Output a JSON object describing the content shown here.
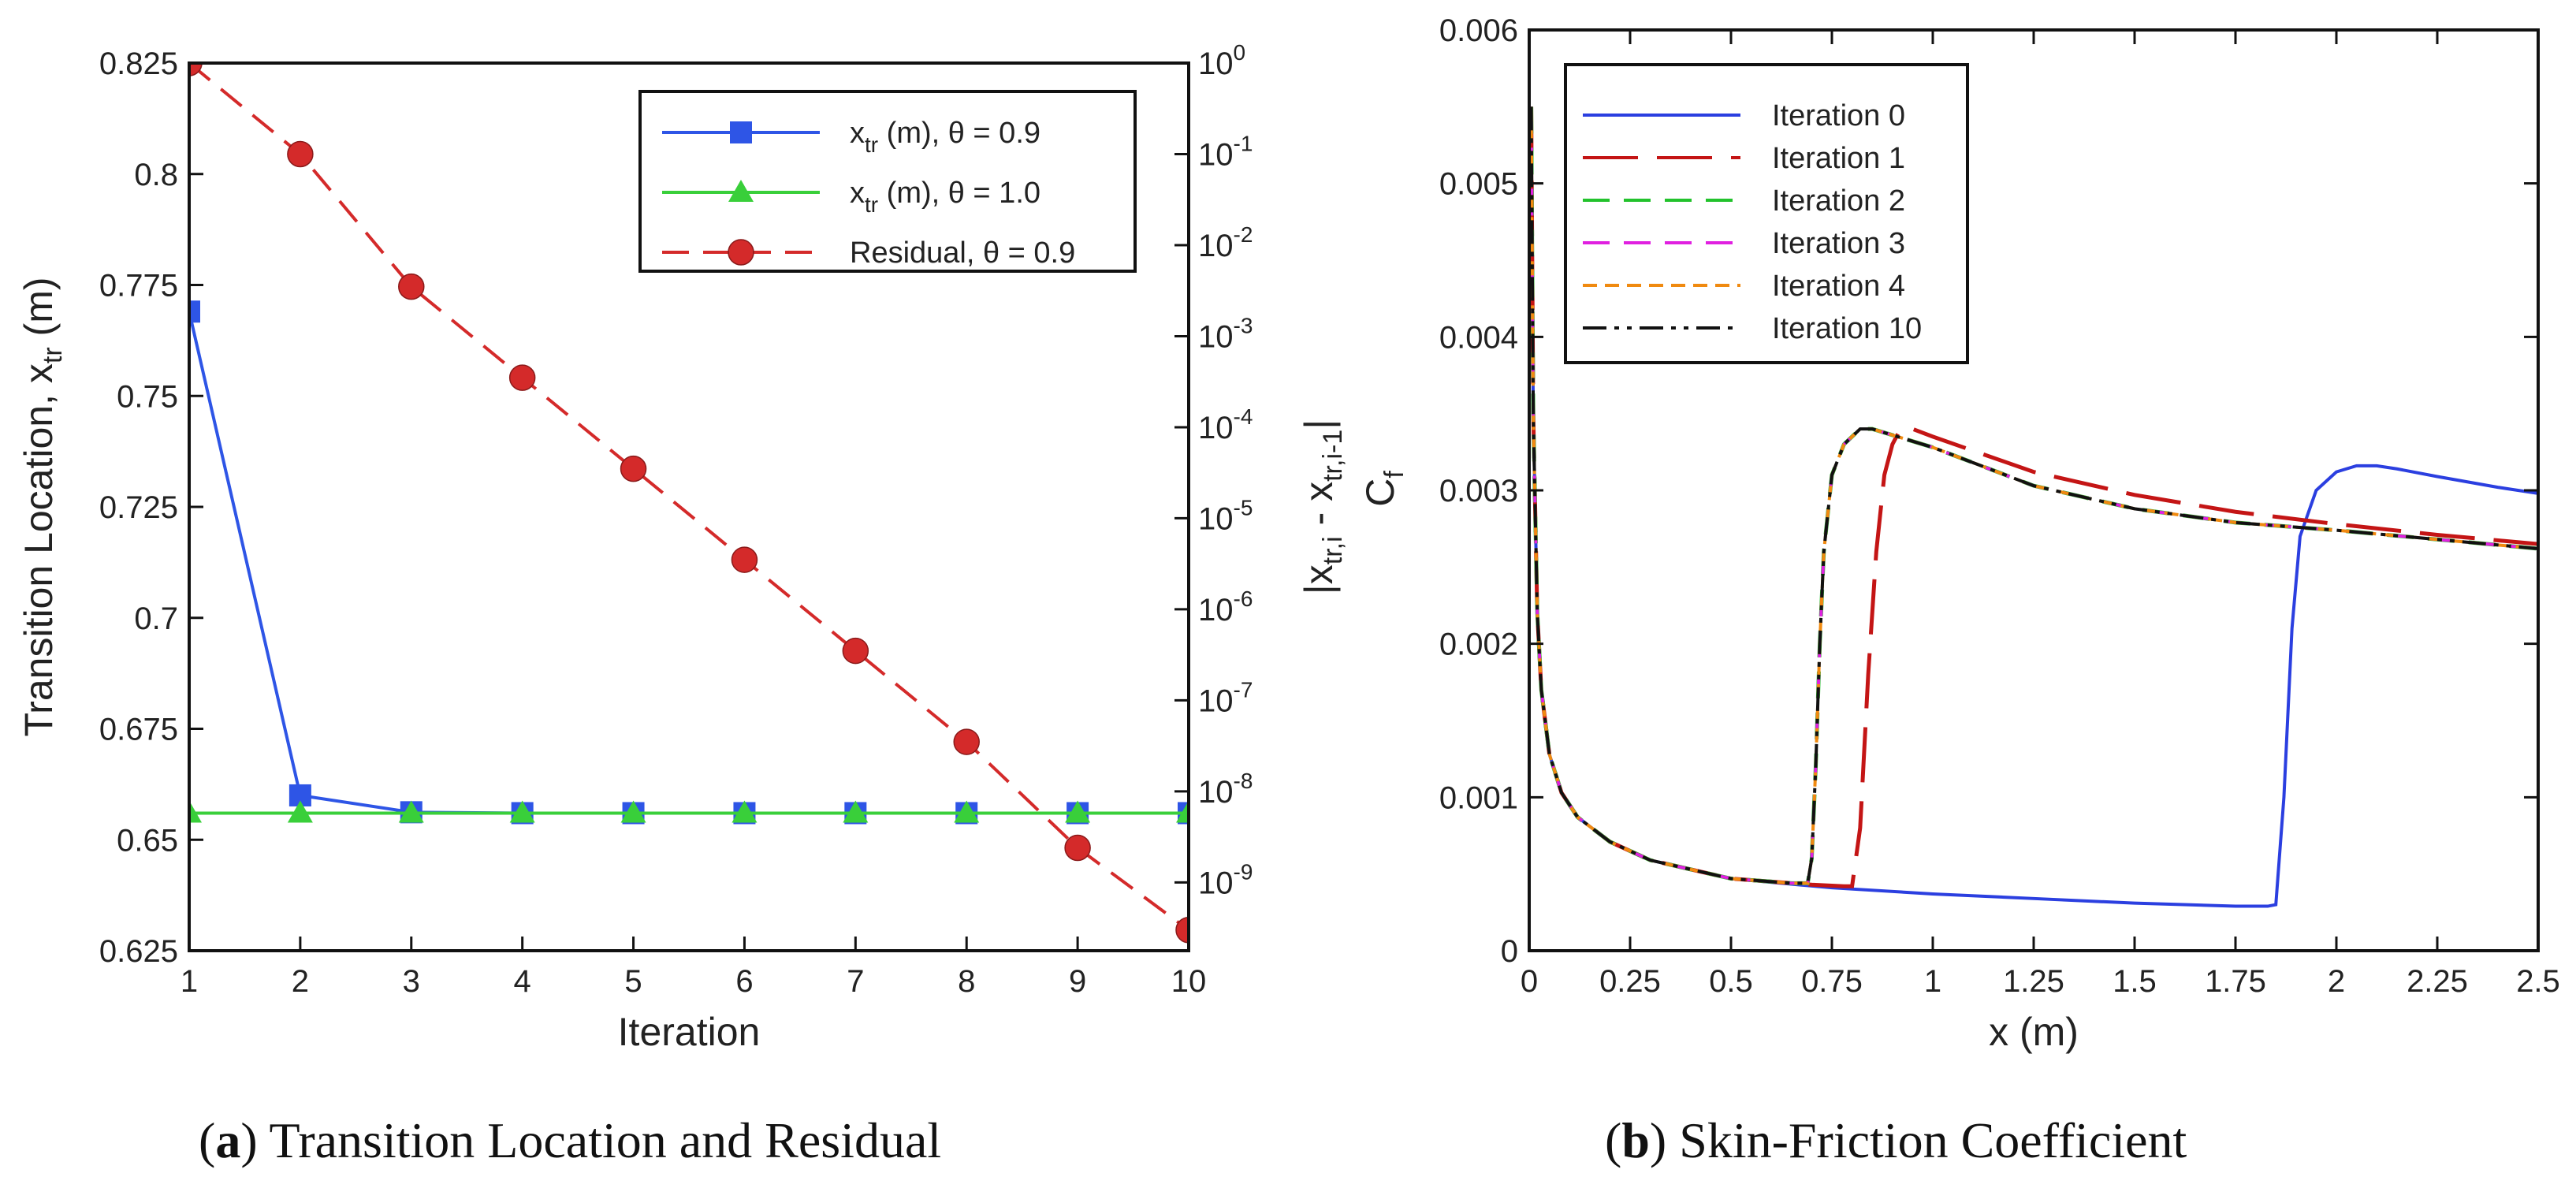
{
  "captions": {
    "a_letter": "a",
    "a_text": "Transition Location and Residual",
    "b_letter": "b",
    "b_text": "Skin-Friction Coefficient"
  },
  "chart_data": [
    {
      "type": "line",
      "xlabel": "Iteration",
      "ylabel": "Transition Location, x",
      "ylabel_sub": "tr",
      "ylabel_unit": " (m)",
      "y2label_parts": [
        "|x",
        "tr,i",
        " - x",
        "tr,i-1",
        "|"
      ],
      "x": [
        1,
        2,
        3,
        4,
        5,
        6,
        7,
        8,
        9,
        10
      ],
      "xlim": [
        1,
        10
      ],
      "xticks": [
        "1",
        "2",
        "3",
        "4",
        "5",
        "6",
        "7",
        "8",
        "9",
        "10"
      ],
      "ylim": [
        0.625,
        0.825
      ],
      "yticks": [
        "0.625",
        "0.65",
        "0.675",
        "0.7",
        "0.725",
        "0.75",
        "0.775",
        "0.8",
        "0.825"
      ],
      "y2scale": "log",
      "y2lim_exp": [
        -9.75,
        0
      ],
      "y2tick_exponents": [
        "0",
        "-1",
        "-2",
        "-3",
        "-4",
        "-5",
        "-6",
        "-7",
        "-8",
        "-9"
      ],
      "y2tick_base": "10",
      "legend_position": "top-right",
      "series": [
        {
          "name": "x",
          "name_sub": "tr",
          "name_rest": " (m), θ = 0.9",
          "axis": "left",
          "color": "#2e55e6",
          "marker": "square",
          "dash": "solid",
          "values": [
            0.769,
            0.66,
            0.6562,
            0.656,
            0.656,
            0.656,
            0.656,
            0.656,
            0.656,
            0.656
          ]
        },
        {
          "name": "x",
          "name_sub": "tr",
          "name_rest": " (m), θ = 1.0",
          "axis": "left",
          "color": "#39cf3a",
          "marker": "triangle",
          "dash": "solid",
          "values": [
            0.656,
            0.656,
            0.656,
            0.656,
            0.656,
            0.656,
            0.656,
            0.656,
            0.656,
            0.656
          ]
        },
        {
          "name": "Residual, θ = 0.9",
          "axis": "right",
          "color": "#d42a2a",
          "marker": "circle",
          "dash": "dashed",
          "values": [
            1.0,
            0.1,
            0.0035,
            0.00035,
            3.5e-05,
            3.5e-06,
            3.5e-07,
            3.5e-08,
            2.4e-09,
            3e-10
          ]
        }
      ]
    },
    {
      "type": "line",
      "xlabel": "x (m)",
      "ylabel": "C",
      "ylabel_sub": "f",
      "xlim": [
        0,
        2.5
      ],
      "xticks": [
        "0",
        "0.25",
        "0.5",
        "0.75",
        "1",
        "1.25",
        "1.5",
        "1.75",
        "2",
        "2.25",
        "2.5"
      ],
      "ylim": [
        0,
        0.006
      ],
      "yticks": [
        "0",
        "0.001",
        "0.002",
        "0.003",
        "0.004",
        "0.005",
        "0.006"
      ],
      "legend_position": "top-left",
      "series": [
        {
          "name": "Iteration 0",
          "color": "#2b3fe0",
          "dash": "solid",
          "x": [
            0.005,
            0.01,
            0.02,
            0.03,
            0.05,
            0.08,
            0.12,
            0.2,
            0.3,
            0.5,
            0.75,
            1.0,
            1.25,
            1.5,
            1.75,
            1.8,
            1.83,
            1.85,
            1.87,
            1.89,
            1.91,
            1.95,
            2.0,
            2.05,
            2.1,
            2.15,
            2.25,
            2.4,
            2.5
          ],
          "y": [
            0.0055,
            0.0035,
            0.0022,
            0.0017,
            0.00128,
            0.00103,
            0.00087,
            0.00071,
            0.00059,
            0.00047,
            0.00041,
            0.00037,
            0.00034,
            0.00031,
            0.00029,
            0.00029,
            0.00029,
            0.0003,
            0.001,
            0.0021,
            0.0027,
            0.003,
            0.00312,
            0.00316,
            0.00316,
            0.00314,
            0.00309,
            0.00302,
            0.00298
          ]
        },
        {
          "name": "Iteration 1",
          "color": "#c41515",
          "dash": "longdash",
          "x": [
            0.005,
            0.01,
            0.02,
            0.03,
            0.05,
            0.08,
            0.12,
            0.2,
            0.3,
            0.5,
            0.7,
            0.78,
            0.8,
            0.82,
            0.84,
            0.86,
            0.88,
            0.9,
            0.92,
            0.95,
            1.0,
            1.25,
            1.5,
            1.75,
            2.0,
            2.25,
            2.5
          ],
          "y": [
            0.0055,
            0.0035,
            0.0022,
            0.0017,
            0.00128,
            0.00103,
            0.00087,
            0.00071,
            0.00059,
            0.00047,
            0.00043,
            0.00042,
            0.00042,
            0.0008,
            0.0018,
            0.0026,
            0.0031,
            0.0033,
            0.0034,
            0.0034,
            0.00335,
            0.00312,
            0.00297,
            0.00286,
            0.00278,
            0.00271,
            0.00265
          ]
        },
        {
          "name": "Iteration 2",
          "color": "#22c22c",
          "dash": "dashed",
          "x": [
            0.005,
            0.01,
            0.02,
            0.03,
            0.05,
            0.08,
            0.12,
            0.2,
            0.3,
            0.5,
            0.65,
            0.69,
            0.7,
            0.71,
            0.72,
            0.73,
            0.75,
            0.78,
            0.82,
            0.85,
            1.0,
            1.25,
            1.5,
            1.75,
            2.0,
            2.25,
            2.5
          ],
          "y": [
            0.0055,
            0.0035,
            0.0022,
            0.0017,
            0.00128,
            0.00103,
            0.00087,
            0.00071,
            0.00059,
            0.00047,
            0.00044,
            0.00044,
            0.0006,
            0.0012,
            0.002,
            0.0026,
            0.0031,
            0.0033,
            0.0034,
            0.0034,
            0.00328,
            0.00303,
            0.00288,
            0.00279,
            0.00274,
            0.00268,
            0.00262
          ]
        },
        {
          "name": "Iteration 3",
          "color": "#e020e0",
          "dash": "dashed",
          "x": [
            0.005,
            0.01,
            0.02,
            0.03,
            0.05,
            0.08,
            0.12,
            0.2,
            0.3,
            0.5,
            0.65,
            0.69,
            0.7,
            0.71,
            0.72,
            0.73,
            0.75,
            0.78,
            0.82,
            0.85,
            1.0,
            1.25,
            1.5,
            1.75,
            2.0,
            2.25,
            2.5
          ],
          "y": [
            0.0055,
            0.0035,
            0.0022,
            0.0017,
            0.00128,
            0.00103,
            0.00087,
            0.00071,
            0.00059,
            0.00047,
            0.00044,
            0.00044,
            0.0006,
            0.0012,
            0.002,
            0.0026,
            0.0031,
            0.0033,
            0.0034,
            0.0034,
            0.00328,
            0.00303,
            0.00288,
            0.00279,
            0.00274,
            0.00268,
            0.00262
          ]
        },
        {
          "name": "Iteration 4",
          "color": "#f08a10",
          "dash": "shortdash",
          "x": [
            0.005,
            0.01,
            0.02,
            0.03,
            0.05,
            0.08,
            0.12,
            0.2,
            0.3,
            0.5,
            0.65,
            0.69,
            0.7,
            0.71,
            0.72,
            0.73,
            0.75,
            0.78,
            0.82,
            0.85,
            1.0,
            1.25,
            1.5,
            1.75,
            2.0,
            2.25,
            2.5
          ],
          "y": [
            0.0055,
            0.0035,
            0.0022,
            0.0017,
            0.00128,
            0.00103,
            0.00087,
            0.00071,
            0.00059,
            0.00047,
            0.00044,
            0.00044,
            0.0006,
            0.0012,
            0.002,
            0.0026,
            0.0031,
            0.0033,
            0.0034,
            0.0034,
            0.00328,
            0.00303,
            0.00288,
            0.00279,
            0.00274,
            0.00268,
            0.00262
          ]
        },
        {
          "name": "Iteration 10",
          "color": "#111111",
          "dash": "dashdotdot",
          "x": [
            0.005,
            0.01,
            0.02,
            0.03,
            0.05,
            0.08,
            0.12,
            0.2,
            0.3,
            0.5,
            0.65,
            0.69,
            0.7,
            0.71,
            0.72,
            0.73,
            0.75,
            0.78,
            0.82,
            0.85,
            1.0,
            1.25,
            1.5,
            1.75,
            2.0,
            2.25,
            2.5
          ],
          "y": [
            0.0055,
            0.0035,
            0.0022,
            0.0017,
            0.00128,
            0.00103,
            0.00087,
            0.00071,
            0.00059,
            0.00047,
            0.00044,
            0.00044,
            0.0006,
            0.0012,
            0.002,
            0.0026,
            0.0031,
            0.0033,
            0.0034,
            0.0034,
            0.00328,
            0.00303,
            0.00288,
            0.00279,
            0.00274,
            0.00268,
            0.00262
          ]
        }
      ]
    }
  ]
}
